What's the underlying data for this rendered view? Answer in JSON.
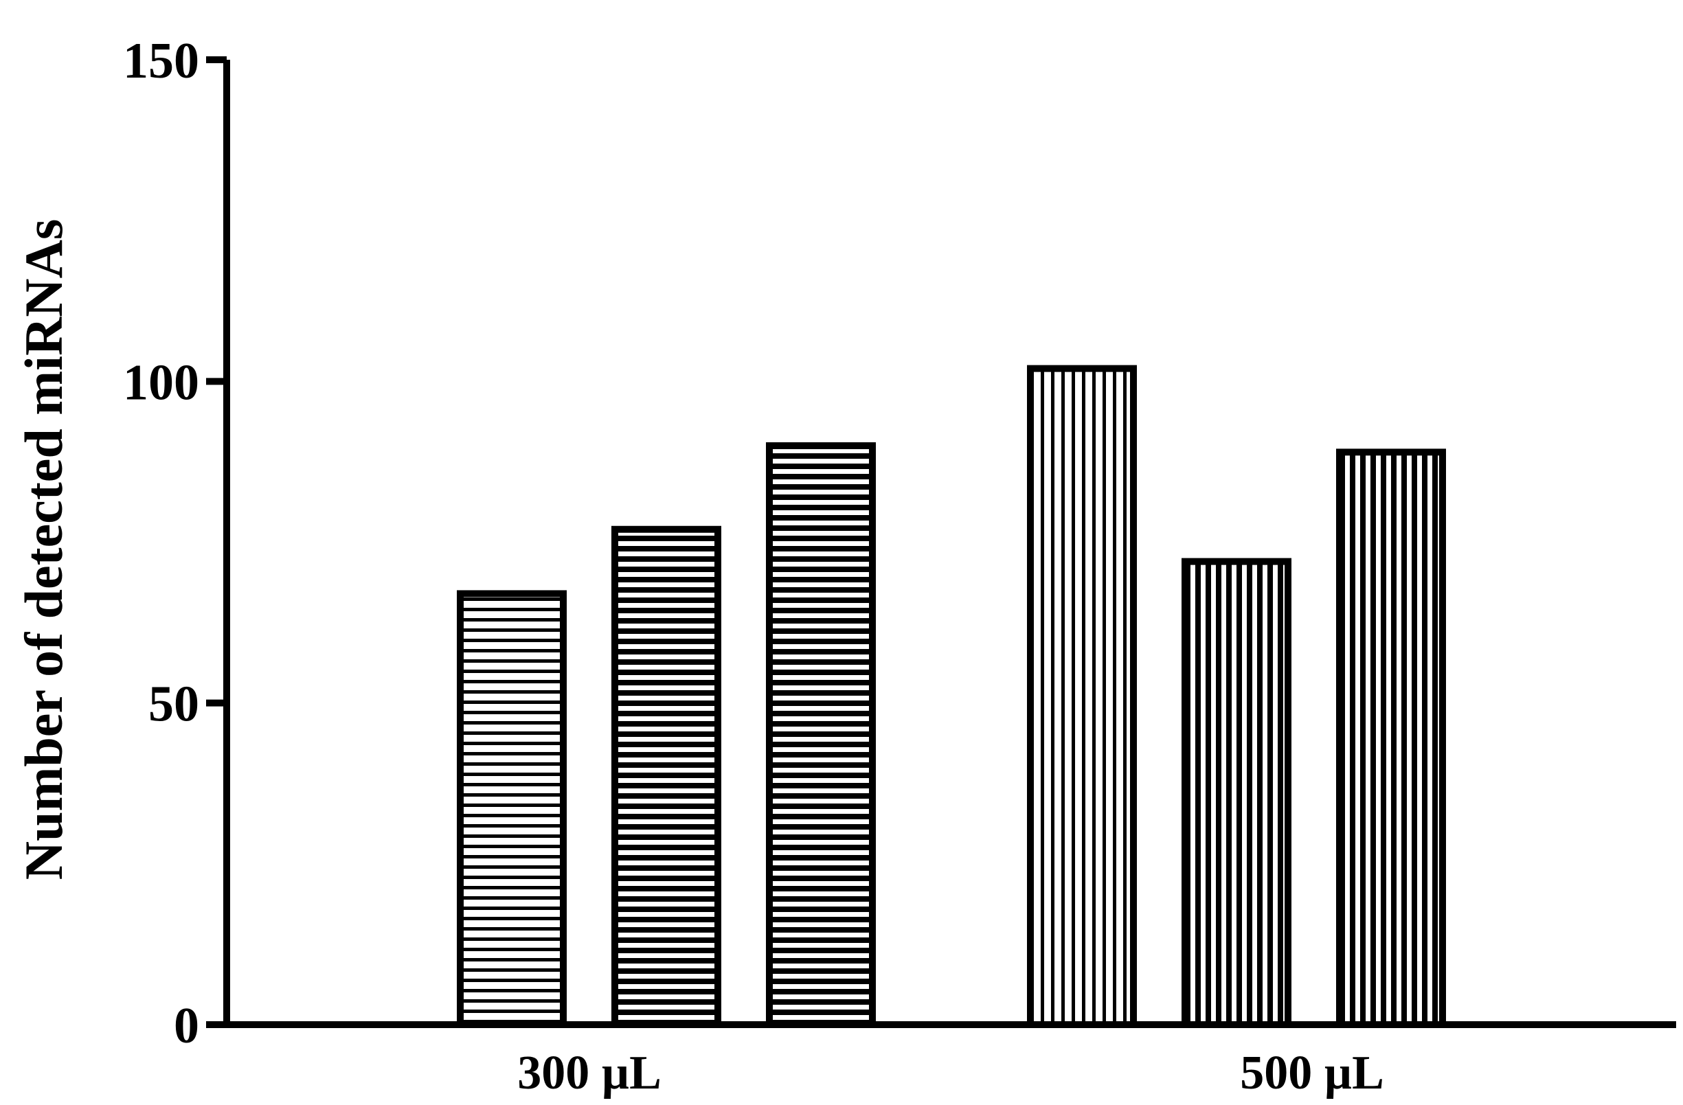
{
  "chart_data": {
    "type": "bar",
    "title": "",
    "xlabel": "",
    "ylabel": "Number of detected miRNAs",
    "ylim": [
      0,
      150
    ],
    "yticks": [
      "0",
      "50",
      "100",
      "150"
    ],
    "categories": [
      "300 µL",
      "500 µL"
    ],
    "bars": [
      {
        "category": "300 µL",
        "value": 67,
        "pattern": "horizontal-stripes-sparse"
      },
      {
        "category": "300 µL",
        "value": 77,
        "pattern": "horizontal-stripes-dense"
      },
      {
        "category": "300 µL",
        "value": 90,
        "pattern": "horizontal-stripes-dense"
      },
      {
        "category": "500 µL",
        "value": 102,
        "pattern": "vertical-stripes-sparse"
      },
      {
        "category": "500 µL",
        "value": 72,
        "pattern": "vertical-stripes-dense"
      },
      {
        "category": "500 µL",
        "value": 89,
        "pattern": "vertical-stripes-dense"
      }
    ],
    "grid": false,
    "legend": "none",
    "bar_outline_color": "#000000",
    "bar_fill_color": "#ffffff"
  }
}
